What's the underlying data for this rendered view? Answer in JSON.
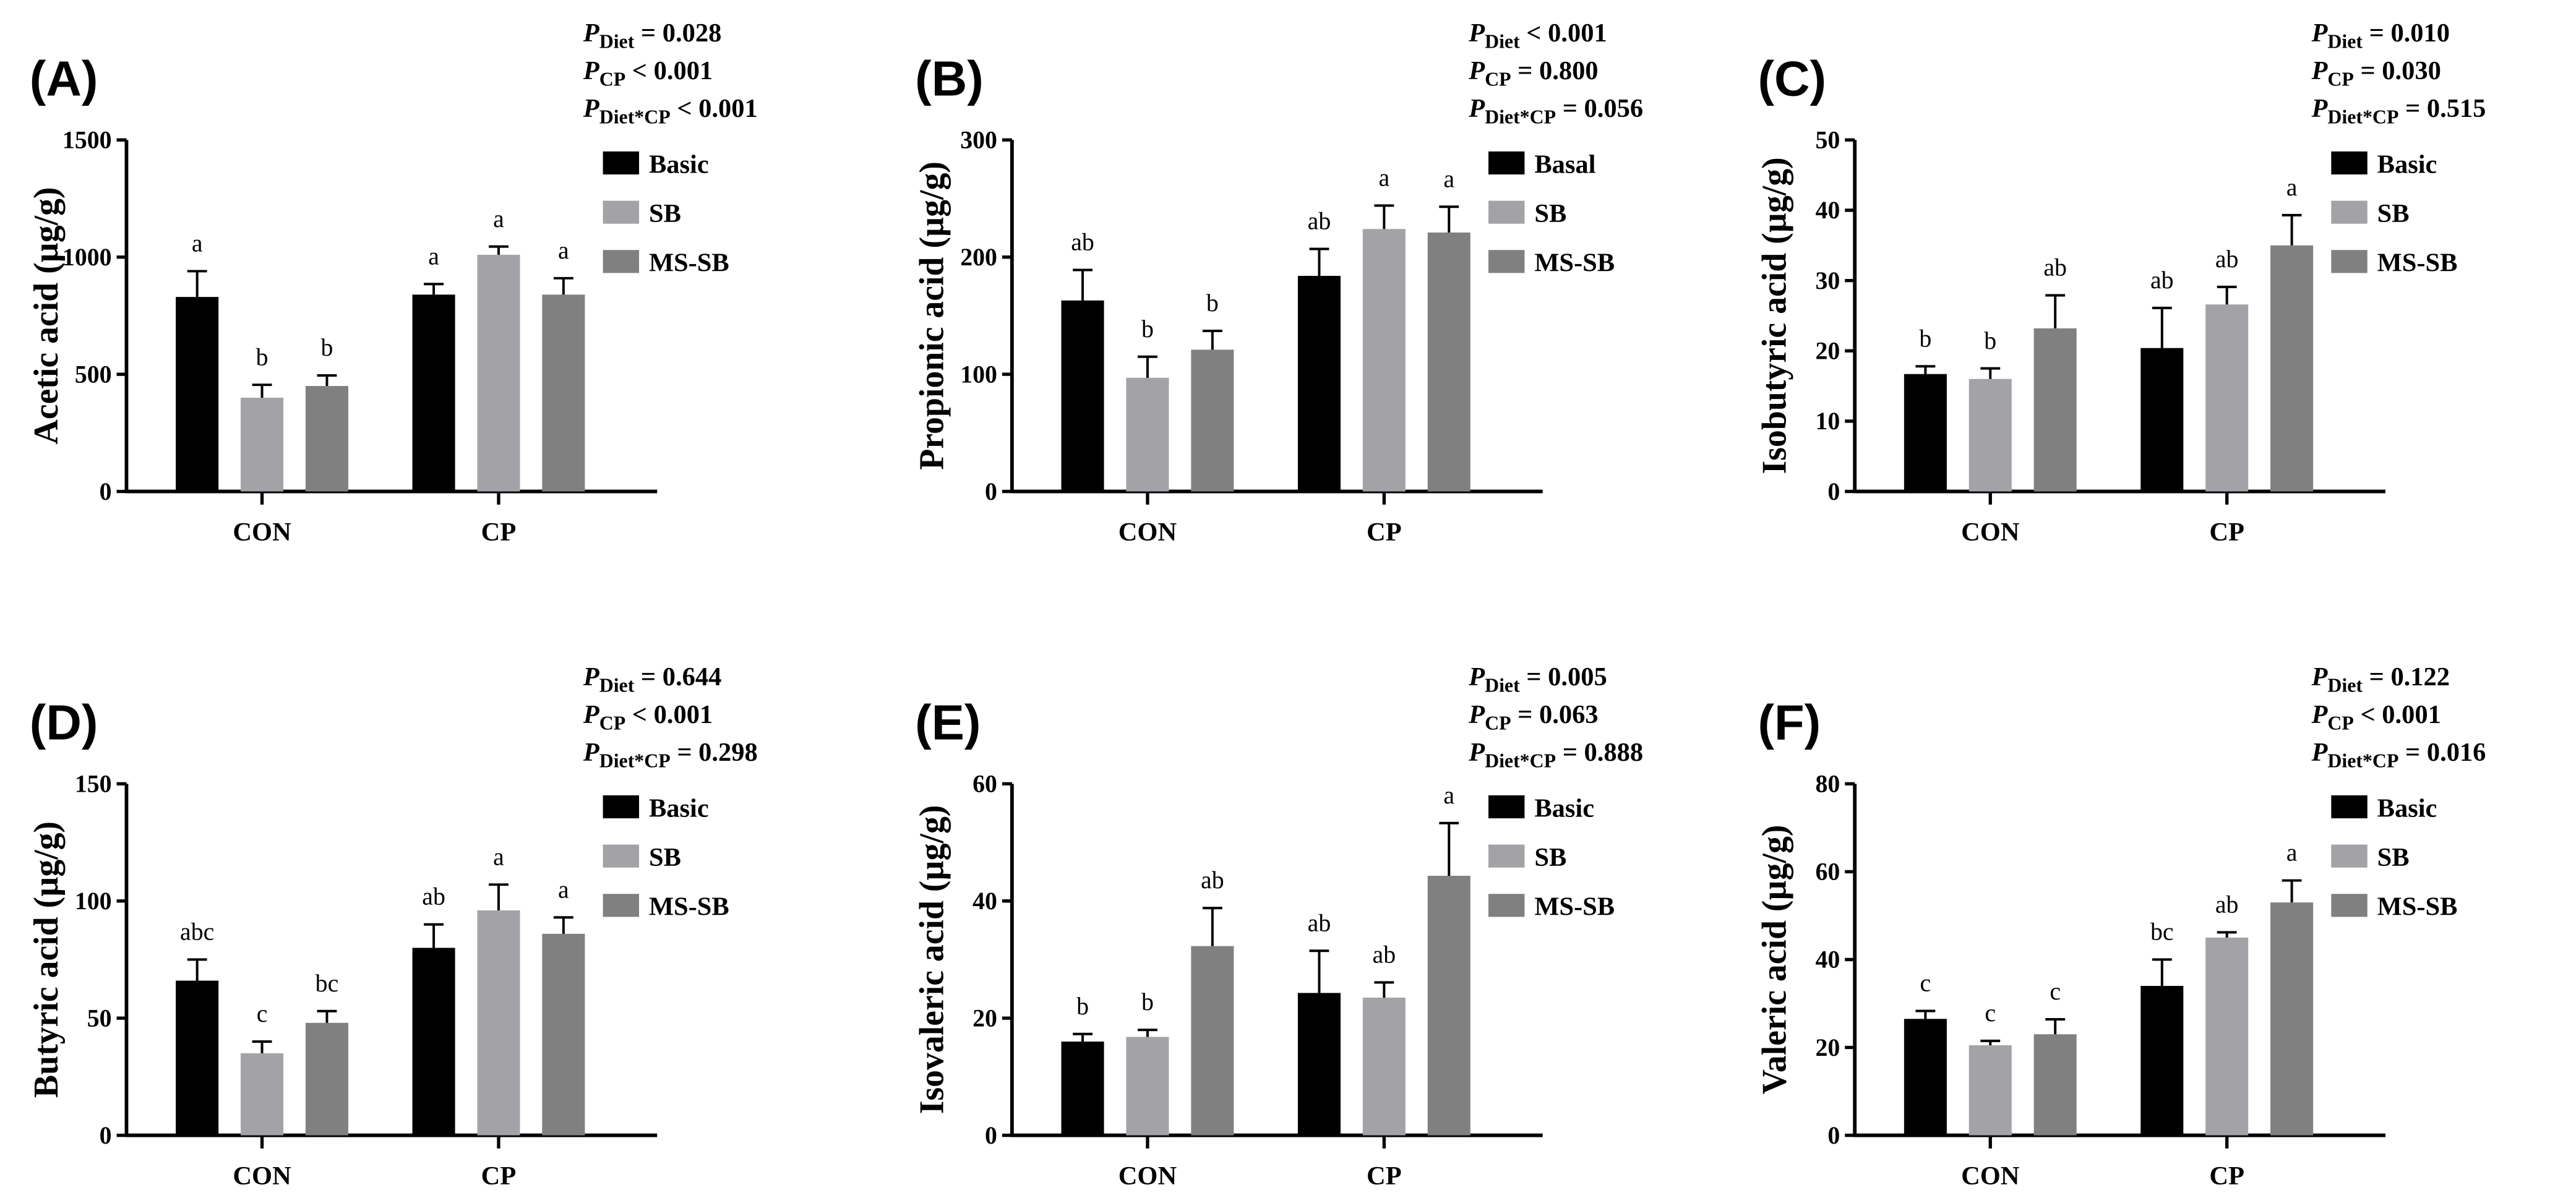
{
  "colors": {
    "Basic": "#000000",
    "SB": "#a3a3a7",
    "MS-SB": "#808080"
  },
  "chart_data": [
    {
      "type": "bar",
      "panel": "(A)",
      "ylabel": "Acetic acid (µg/g)",
      "ylim": [
        0,
        1500
      ],
      "yticks": [
        0,
        500,
        1000,
        1500
      ],
      "categories": [
        "CON",
        "CP"
      ],
      "legend": [
        "Basic",
        "SB",
        "MS-SB"
      ],
      "pvalues": [
        {
          "sub": "Diet",
          "text": " = 0.028"
        },
        {
          "sub": "CP",
          "text": " < 0.001"
        },
        {
          "sub": "Diet*CP",
          "text": " < 0.001"
        }
      ],
      "series": [
        {
          "name": "Basic",
          "values": [
            830,
            840
          ],
          "errors": [
            110,
            45
          ],
          "letters": [
            "a",
            "a"
          ]
        },
        {
          "name": "SB",
          "values": [
            400,
            1010
          ],
          "errors": [
            55,
            35
          ],
          "letters": [
            "b",
            "a"
          ]
        },
        {
          "name": "MS-SB",
          "values": [
            450,
            840
          ],
          "errors": [
            45,
            70
          ],
          "letters": [
            "b",
            "a"
          ]
        }
      ]
    },
    {
      "type": "bar",
      "panel": "(B)",
      "ylabel": "Propionic acid (µg/g)",
      "ylim": [
        0,
        300
      ],
      "yticks": [
        0,
        100,
        200,
        300
      ],
      "categories": [
        "CON",
        "CP"
      ],
      "legend": [
        "Basal",
        "SB",
        "MS-SB"
      ],
      "pvalues": [
        {
          "sub": "Diet",
          "text": " < 0.001"
        },
        {
          "sub": "CP",
          "text": " = 0.800"
        },
        {
          "sub": "Diet*CP",
          "text": " = 0.056"
        }
      ],
      "series": [
        {
          "name": "Basal",
          "values": [
            163,
            184
          ],
          "errors": [
            26,
            23
          ],
          "letters": [
            "ab",
            "ab"
          ]
        },
        {
          "name": "SB",
          "values": [
            97,
            224
          ],
          "errors": [
            18,
            20
          ],
          "letters": [
            "b",
            "a"
          ]
        },
        {
          "name": "MS-SB",
          "values": [
            121,
            221
          ],
          "errors": [
            16,
            22
          ],
          "letters": [
            "b",
            "a"
          ]
        }
      ]
    },
    {
      "type": "bar",
      "panel": "(C)",
      "ylabel": "Isobutyric acid (µg/g)",
      "ylim": [
        0,
        50
      ],
      "yticks": [
        0,
        10,
        20,
        30,
        40,
        50
      ],
      "categories": [
        "CON",
        "CP"
      ],
      "legend": [
        "Basic",
        "SB",
        "MS-SB"
      ],
      "pvalues": [
        {
          "sub": "Diet",
          "text": " = 0.010"
        },
        {
          "sub": "CP",
          "text": " = 0.030"
        },
        {
          "sub": "Diet*CP",
          "text": " = 0.515"
        }
      ],
      "series": [
        {
          "name": "Basic",
          "values": [
            16.7,
            20.4
          ],
          "errors": [
            1.1,
            5.7
          ],
          "letters": [
            "b",
            "ab"
          ]
        },
        {
          "name": "SB",
          "values": [
            16.0,
            26.6
          ],
          "errors": [
            1.5,
            2.5
          ],
          "letters": [
            "b",
            "ab"
          ]
        },
        {
          "name": "MS-SB",
          "values": [
            23.2,
            35.0
          ],
          "errors": [
            4.7,
            4.3
          ],
          "letters": [
            "ab",
            "a"
          ]
        }
      ]
    },
    {
      "type": "bar",
      "panel": "(D)",
      "ylabel": "Butyric acid (µg/g)",
      "ylim": [
        0,
        150
      ],
      "yticks": [
        0,
        50,
        100,
        150
      ],
      "categories": [
        "CON",
        "CP"
      ],
      "legend": [
        "Basic",
        "SB",
        "MS-SB"
      ],
      "pvalues": [
        {
          "sub": "Diet",
          "text": " = 0.644"
        },
        {
          "sub": "CP",
          "text": " < 0.001"
        },
        {
          "sub": "Diet*CP",
          "text": " = 0.298"
        }
      ],
      "series": [
        {
          "name": "Basic",
          "values": [
            66,
            80
          ],
          "errors": [
            9,
            10
          ],
          "letters": [
            "abc",
            "ab"
          ]
        },
        {
          "name": "SB",
          "values": [
            35,
            96
          ],
          "errors": [
            5,
            11
          ],
          "letters": [
            "c",
            "a"
          ]
        },
        {
          "name": "MS-SB",
          "values": [
            48,
            86
          ],
          "errors": [
            5,
            7
          ],
          "letters": [
            "bc",
            "a"
          ]
        }
      ]
    },
    {
      "type": "bar",
      "panel": "(E)",
      "ylabel": "Isovaleric acid (µg/g)",
      "ylim": [
        0,
        60
      ],
      "yticks": [
        0,
        20,
        40,
        60
      ],
      "categories": [
        "CON",
        "CP"
      ],
      "legend": [
        "Basic",
        "SB",
        "MS-SB"
      ],
      "pvalues": [
        {
          "sub": "Diet",
          "text": " = 0.005"
        },
        {
          "sub": "CP",
          "text": " = 0.063"
        },
        {
          "sub": "Diet*CP",
          "text": " = 0.888"
        }
      ],
      "series": [
        {
          "name": "Basic",
          "values": [
            16.0,
            24.3
          ],
          "errors": [
            1.3,
            7.2
          ],
          "letters": [
            "b",
            "ab"
          ]
        },
        {
          "name": "SB",
          "values": [
            16.8,
            23.5
          ],
          "errors": [
            1.2,
            2.6
          ],
          "letters": [
            "b",
            "ab"
          ]
        },
        {
          "name": "MS-SB",
          "values": [
            32.3,
            44.3
          ],
          "errors": [
            6.5,
            9.0
          ],
          "letters": [
            "ab",
            "a"
          ]
        }
      ]
    },
    {
      "type": "bar",
      "panel": "(F)",
      "ylabel": "Valeric acid (µg/g)",
      "ylim": [
        0,
        80
      ],
      "yticks": [
        0,
        20,
        40,
        60,
        80
      ],
      "categories": [
        "CON",
        "CP"
      ],
      "legend": [
        "Basic",
        "SB",
        "MS-SB"
      ],
      "pvalues": [
        {
          "sub": "Diet",
          "text": " = 0.122"
        },
        {
          "sub": "CP",
          "text": " < 0.001"
        },
        {
          "sub": "Diet*CP",
          "text": " = 0.016"
        }
      ],
      "series": [
        {
          "name": "Basic",
          "values": [
            26.5,
            34.0
          ],
          "errors": [
            1.8,
            6.0
          ],
          "letters": [
            "c",
            "bc"
          ]
        },
        {
          "name": "SB",
          "values": [
            20.5,
            45.0
          ],
          "errors": [
            1.0,
            1.2
          ],
          "letters": [
            "c",
            "ab"
          ]
        },
        {
          "name": "MS-SB",
          "values": [
            23.0,
            53.0
          ],
          "errors": [
            3.4,
            5.0
          ],
          "letters": [
            "c",
            "a"
          ]
        }
      ]
    }
  ]
}
